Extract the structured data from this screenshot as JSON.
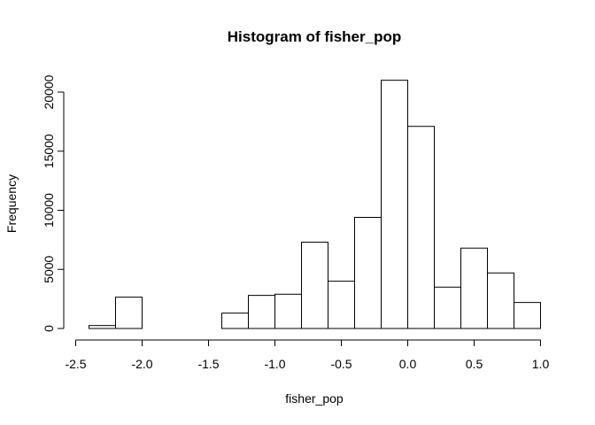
{
  "chart_data": {
    "type": "bar",
    "title": "Histogram of fisher_pop",
    "xlabel": "fisher_pop",
    "ylabel": "Frequency",
    "bin_width": 0.2,
    "bins": [
      {
        "start": -2.4,
        "end": -2.2,
        "count": 250
      },
      {
        "start": -2.2,
        "end": -2.0,
        "count": 2650
      },
      {
        "start": -2.0,
        "end": -1.8,
        "count": 0
      },
      {
        "start": -1.8,
        "end": -1.6,
        "count": 0
      },
      {
        "start": -1.6,
        "end": -1.4,
        "count": 0
      },
      {
        "start": -1.4,
        "end": -1.2,
        "count": 1300
      },
      {
        "start": -1.2,
        "end": -1.0,
        "count": 2800
      },
      {
        "start": -1.0,
        "end": -0.8,
        "count": 2900
      },
      {
        "start": -0.8,
        "end": -0.6,
        "count": 7300
      },
      {
        "start": -0.6,
        "end": -0.4,
        "count": 4000
      },
      {
        "start": -0.4,
        "end": -0.2,
        "count": 9400
      },
      {
        "start": -0.2,
        "end": 0.0,
        "count": 21000
      },
      {
        "start": 0.0,
        "end": 0.2,
        "count": 17100
      },
      {
        "start": 0.2,
        "end": 0.4,
        "count": 3500
      },
      {
        "start": 0.4,
        "end": 0.6,
        "count": 6800
      },
      {
        "start": 0.6,
        "end": 0.8,
        "count": 4700
      },
      {
        "start": 0.8,
        "end": 1.0,
        "count": 2200
      }
    ],
    "xlim": [
      -2.5,
      1.0
    ],
    "ylim": [
      0,
      20000
    ],
    "x_ticks": [
      -2.5,
      -2.0,
      -1.5,
      -1.0,
      -0.5,
      0.0,
      0.5,
      1.0
    ],
    "x_tick_labels": [
      "-2.5",
      "-2.0",
      "-1.5",
      "-1.0",
      "-0.5",
      "0.0",
      "0.5",
      "1.0"
    ],
    "y_ticks": [
      0,
      5000,
      10000,
      15000,
      20000
    ],
    "y_tick_labels": [
      "0",
      "5000",
      "10000",
      "15000",
      "20000"
    ],
    "grid": false
  }
}
